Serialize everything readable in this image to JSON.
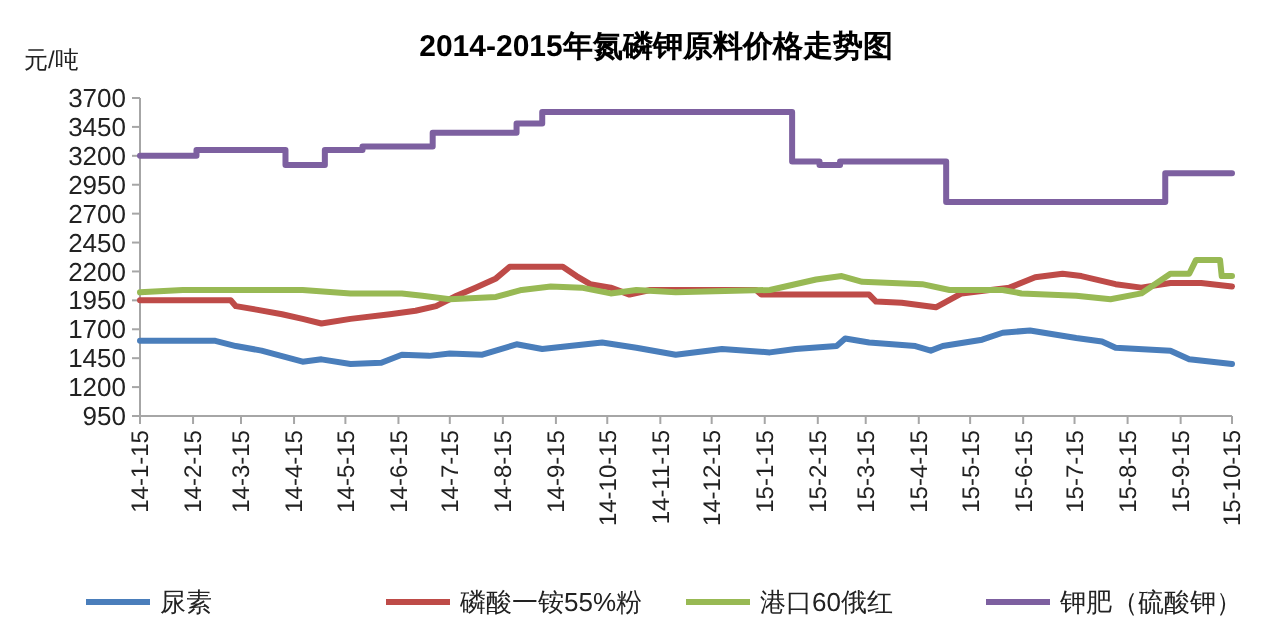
{
  "chart_data": {
    "type": "line",
    "title": "2014-2015年氮磷钾原料价格走势图",
    "ylabel": "元/吨",
    "xlim": [
      "2014-01-15",
      "2015-10-15"
    ],
    "xticks": [
      {
        "value": "2014-01-15",
        "label": "14-1-15"
      },
      {
        "value": "2014-02-15",
        "label": "14-2-15"
      },
      {
        "value": "2014-03-15",
        "label": "14-3-15"
      },
      {
        "value": "2014-04-15",
        "label": "14-4-15"
      },
      {
        "value": "2014-05-15",
        "label": "14-5-15"
      },
      {
        "value": "2014-06-15",
        "label": "14-6-15"
      },
      {
        "value": "2014-07-15",
        "label": "14-7-15"
      },
      {
        "value": "2014-08-15",
        "label": "14-8-15"
      },
      {
        "value": "2014-09-15",
        "label": "14-9-15"
      },
      {
        "value": "2014-10-15",
        "label": "14-10-15"
      },
      {
        "value": "2014-11-15",
        "label": "14-11-15"
      },
      {
        "value": "2014-12-15",
        "label": "14-12-15"
      },
      {
        "value": "2015-01-15",
        "label": "15-1-15"
      },
      {
        "value": "2015-02-15",
        "label": "15-2-15"
      },
      {
        "value": "2015-03-15",
        "label": "15-3-15"
      },
      {
        "value": "2015-04-15",
        "label": "15-4-15"
      },
      {
        "value": "2015-05-15",
        "label": "15-5-15"
      },
      {
        "value": "2015-06-15",
        "label": "15-6-15"
      },
      {
        "value": "2015-07-15",
        "label": "15-7-15"
      },
      {
        "value": "2015-08-15",
        "label": "15-8-15"
      },
      {
        "value": "2015-09-15",
        "label": "15-9-15"
      },
      {
        "value": "2015-10-15",
        "label": "15-10-15"
      }
    ],
    "ylim": [
      950,
      3700
    ],
    "yticks": [
      950,
      1200,
      1450,
      1700,
      1950,
      2200,
      2450,
      2700,
      2950,
      3200,
      3450,
      3700
    ],
    "grid": false,
    "legend": "bottom",
    "marker": "none",
    "line_style": "solid",
    "series": [
      {
        "name": "尿素",
        "color": "#4a7ebb",
        "x": [
          "2014-01-15",
          "2014-02-28",
          "2014-03-12",
          "2014-03-27",
          "2014-04-20",
          "2014-05-01",
          "2014-05-18",
          "2014-06-05",
          "2014-06-17",
          "2014-07-03",
          "2014-07-15",
          "2014-08-03",
          "2014-08-23",
          "2014-09-07",
          "2014-09-23",
          "2014-10-12",
          "2014-11-01",
          "2014-11-24",
          "2014-12-21",
          "2015-01-18",
          "2015-02-02",
          "2015-02-26",
          "2015-03-03",
          "2015-03-17",
          "2015-04-13",
          "2015-04-22",
          "2015-04-29",
          "2015-05-22",
          "2015-06-03",
          "2015-06-19",
          "2015-07-16",
          "2015-07-31",
          "2015-08-08",
          "2015-09-09",
          "2015-09-20",
          "2015-10-15"
        ],
        "values": [
          1600,
          1600,
          1555,
          1515,
          1420,
          1440,
          1400,
          1410,
          1480,
          1470,
          1490,
          1480,
          1570,
          1530,
          1555,
          1585,
          1540,
          1480,
          1530,
          1500,
          1530,
          1555,
          1620,
          1585,
          1555,
          1515,
          1555,
          1610,
          1670,
          1690,
          1625,
          1595,
          1540,
          1515,
          1440,
          1400
        ]
      },
      {
        "name": "磷酸一铵55%粉",
        "color": "#be4b48",
        "x": [
          "2014-01-15",
          "2014-03-09",
          "2014-03-12",
          "2014-03-24",
          "2014-04-08",
          "2014-04-20",
          "2014-05-01",
          "2014-05-18",
          "2014-06-10",
          "2014-06-25",
          "2014-07-07",
          "2014-07-19",
          "2014-07-30",
          "2014-08-11",
          "2014-08-19",
          "2014-09-19",
          "2014-09-27",
          "2014-10-05",
          "2014-10-17",
          "2014-10-28",
          "2014-11-09",
          "2015-01-10",
          "2015-01-13",
          "2015-03-17",
          "2015-03-21",
          "2015-04-05",
          "2015-04-25",
          "2015-05-10",
          "2015-06-07",
          "2015-06-22",
          "2015-07-08",
          "2015-07-19",
          "2015-08-08",
          "2015-08-23",
          "2015-09-09",
          "2015-09-27",
          "2015-10-15"
        ],
        "values": [
          1950,
          1950,
          1900,
          1870,
          1830,
          1790,
          1750,
          1790,
          1830,
          1860,
          1900,
          1990,
          2060,
          2140,
          2240,
          2240,
          2160,
          2090,
          2060,
          2000,
          2040,
          2040,
          2000,
          2000,
          1940,
          1930,
          1890,
          2010,
          2060,
          2150,
          2180,
          2160,
          2090,
          2060,
          2100,
          2100,
          2070
        ]
      },
      {
        "name": "港口60俄红",
        "color": "#98b954",
        "x": [
          "2014-01-15",
          "2014-02-09",
          "2014-04-20",
          "2014-05-18",
          "2014-06-17",
          "2014-06-29",
          "2014-07-15",
          "2014-08-11",
          "2014-08-26",
          "2014-09-12",
          "2014-09-30",
          "2014-10-17",
          "2014-11-01",
          "2014-11-24",
          "2015-01-18",
          "2015-02-14",
          "2015-03-01",
          "2015-03-13",
          "2015-04-17",
          "2015-05-03",
          "2015-06-03",
          "2015-06-14",
          "2015-07-16",
          "2015-08-05",
          "2015-08-23",
          "2015-09-09",
          "2015-09-20",
          "2015-09-24",
          "2015-10-08",
          "2015-10-09",
          "2015-10-15"
        ],
        "values": [
          2020,
          2040,
          2040,
          2010,
          2010,
          1990,
          1960,
          1980,
          2040,
          2070,
          2060,
          2010,
          2040,
          2020,
          2040,
          2130,
          2160,
          2110,
          2090,
          2040,
          2040,
          2010,
          1990,
          1960,
          2010,
          2180,
          2180,
          2300,
          2300,
          2160,
          2160
        ]
      },
      {
        "name": "钾肥（硫酸钾）",
        "color": "#7d60a0",
        "type": "step",
        "x": [
          "2014-01-15",
          "2014-02-17",
          "2014-04-10",
          "2014-05-03",
          "2014-05-25",
          "2014-07-05",
          "2014-08-23",
          "2014-09-07",
          "2015-01-31",
          "2015-02-16",
          "2015-02-28",
          "2015-05-01",
          "2015-09-06",
          "2015-10-15"
        ],
        "values": [
          3200,
          3250,
          3120,
          3250,
          3280,
          3400,
          3480,
          3580,
          3150,
          3120,
          3150,
          2800,
          3050,
          3050
        ]
      }
    ]
  }
}
